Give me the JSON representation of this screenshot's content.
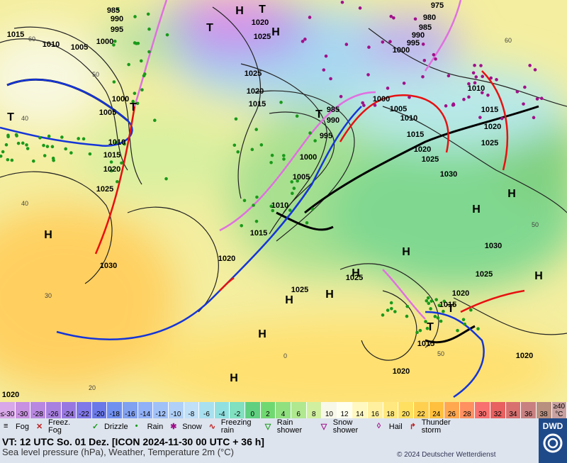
{
  "map": {
    "isobar_labels": [
      "985",
      "1015",
      "1010",
      "990",
      "995",
      "1005",
      "1000",
      "1020",
      "1025",
      "1025",
      "1020",
      "1015",
      "985",
      "990",
      "995",
      "1000",
      "1005",
      "1010",
      "1015",
      "1020",
      "1030",
      "1025",
      "1020",
      "1015",
      "1010",
      "1005",
      "1000",
      "975",
      "980",
      "985",
      "990",
      "995",
      "1000",
      "1010",
      "1000",
      "1005",
      "1010",
      "1015",
      "1020",
      "1025",
      "1030",
      "1015",
      "1020",
      "1025",
      "1030",
      "1025",
      "1025",
      "1025",
      "1020",
      "1015",
      "1015",
      "1020",
      "1020",
      "1020"
    ],
    "temperature_labels": [
      "60",
      "50",
      "40",
      "30",
      "20",
      "0",
      "60",
      "50",
      "50",
      "40"
    ],
    "high_symbol": "H",
    "low_symbol": "T"
  },
  "temperature_scale": {
    "labels": [
      "≤-30",
      "-30",
      "-28",
      "-26",
      "-24",
      "-22",
      "-20",
      "-18",
      "-16",
      "-14",
      "-12",
      "-10",
      "-8",
      "-6",
      "-4",
      "-2",
      "0",
      "2",
      "4",
      "6",
      "8",
      "10",
      "12",
      "14",
      "16",
      "18",
      "20",
      "22",
      "24",
      "26",
      "28",
      "30",
      "32",
      "34",
      "36",
      "38",
      "≥40 °C"
    ],
    "colors": [
      "#d8a8e8",
      "#c890e0",
      "#b888e0",
      "#a880e0",
      "#9878e0",
      "#8078e8",
      "#6a78e8",
      "#7090f0",
      "#80a0f0",
      "#90b0f8",
      "#a0c0f8",
      "#b0d0f8",
      "#c0e0f8",
      "#a8e0f0",
      "#90e0e0",
      "#80e0c0",
      "#60d080",
      "#70d870",
      "#90e080",
      "#b0e890",
      "#d0f0a0",
      "#f8f8e8",
      "#fffff0",
      "#fff8c0",
      "#fff0a0",
      "#ffe880",
      "#ffe060",
      "#ffd050",
      "#ffc040",
      "#ffa850",
      "#ff9060",
      "#f87070",
      "#e86060",
      "#d87070",
      "#c88080",
      "#b89080",
      "#c8a0a0"
    ]
  },
  "legend": [
    "Fog",
    "Freez. Fog",
    "Drizzle",
    "Rain",
    "Snow",
    "Freezing rain",
    "Rain shower",
    "Snow shower",
    "Hail",
    "Thunder storm"
  ],
  "footer": {
    "valid_time": "VT: 12 UTC So.  01 Dez. [ICON 2024-11-30  00 UTC + 36 h]",
    "description": "Sea level pressure (hPa), Weather, Temperature 2m (°C)",
    "copyright": "© 2024 Deutscher Wetterdienst",
    "logo": "DWD"
  }
}
